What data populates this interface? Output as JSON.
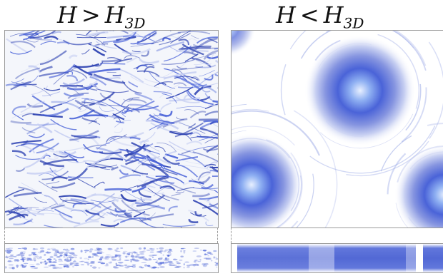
{
  "titles": {
    "left": {
      "lhs": "H",
      "op": ">",
      "rhs": "H",
      "sub": "3D"
    },
    "right": {
      "lhs": "H",
      "op": "<",
      "rhs": "H",
      "sub": "3D"
    }
  },
  "colors": {
    "flow_dark": "#2a3fb0",
    "flow_mid": "#4a63d8",
    "flow_light": "#c8d0f2",
    "background": "#f4f6fb"
  }
}
